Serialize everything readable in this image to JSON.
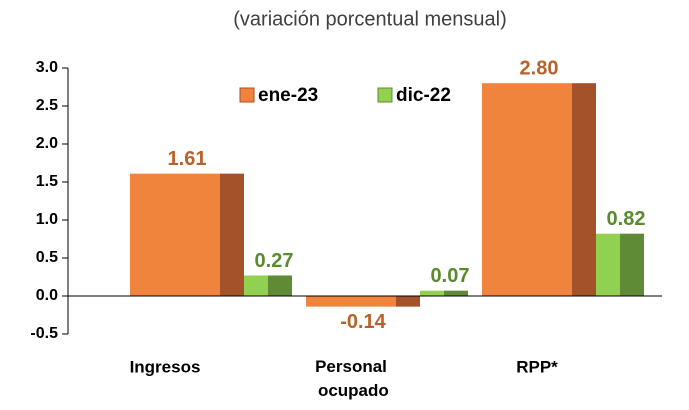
{
  "chart_data": {
    "type": "bar",
    "title": "(variación porcentual mensual)",
    "categories": [
      "Ingresos",
      "Personal ocupado",
      "RPP*"
    ],
    "series": [
      {
        "name": "ene-23",
        "color": "#f0843c",
        "side_color": "#a4522a",
        "label_color": "#b8622a",
        "values": [
          1.61,
          -0.14,
          2.8
        ],
        "value_labels": [
          "1.61",
          "-0.14",
          "2.80"
        ]
      },
      {
        "name": "dic-22",
        "color": "#92d050",
        "side_color": "#5f8a36",
        "label_color": "#5a8a2e",
        "values": [
          0.27,
          0.07,
          0.82
        ],
        "value_labels": [
          "0.27",
          "0.07",
          "0.82"
        ]
      }
    ],
    "ylim": [
      -0.5,
      3.0
    ],
    "yticks": [
      -0.5,
      {
        "value": 0,
        "label": "0.0"
      },
      0.5,
      {
        "value": 1,
        "label": "1.0"
      },
      1.5,
      {
        "value": 2,
        "label": "2.0"
      },
      2.5,
      {
        "value": 3,
        "label": "3.0"
      }
    ],
    "legend": "top"
  }
}
